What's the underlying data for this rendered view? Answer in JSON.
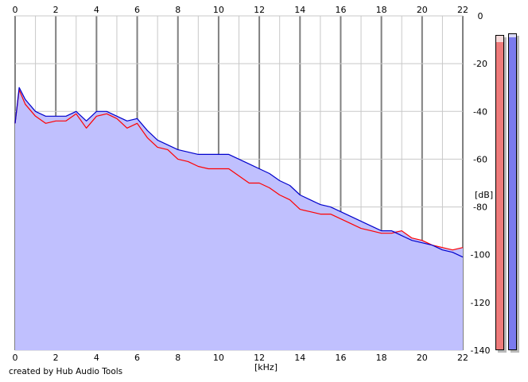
{
  "colors": {
    "background": "#ffffff",
    "area_fill": "#c0c0fe",
    "left_channel": "#ff0000",
    "right_channel": "#0000cc",
    "grid_minor": "#c8c8c8",
    "grid_major": "#808080",
    "meter_left": "#ee7b7b",
    "meter_right": "#7b7bee"
  },
  "credit": "created by Hub Audio Tools",
  "meters": {
    "left_level_fraction": 0.98,
    "right_level_fraction": 0.99
  },
  "chart_data": {
    "type": "area",
    "xlabel": "[kHz]",
    "ylabel": "[dB]",
    "xlim": [
      0,
      22
    ],
    "ylim": [
      -140,
      0
    ],
    "xticks": [
      0,
      2,
      4,
      6,
      8,
      10,
      12,
      14,
      16,
      18,
      20,
      22
    ],
    "xtick_labels": [
      "0",
      "2",
      "4",
      "6",
      "8",
      "10",
      "12",
      "14",
      "16",
      "18",
      "20",
      "22"
    ],
    "yticks": [
      0,
      -20,
      -40,
      -60,
      -80,
      -100,
      -120,
      -140
    ],
    "ytick_labels": [
      "0",
      "-20",
      "-40",
      "-60",
      "-80",
      "-100",
      "-120",
      "-140"
    ],
    "x_axis_position": "top and bottom",
    "y_axis_position": "right",
    "grid": true,
    "series": [
      {
        "channel": "left",
        "color": "#ff0000",
        "x": [
          0,
          0.2,
          0.5,
          1,
          1.5,
          2,
          2.5,
          3,
          3.5,
          4,
          4.5,
          5,
          5.5,
          6,
          6.5,
          7,
          7.5,
          8,
          8.5,
          9,
          9.5,
          10,
          10.5,
          11,
          11.5,
          12,
          12.5,
          13,
          13.5,
          14,
          14.5,
          15,
          15.5,
          16,
          16.5,
          17,
          17.5,
          18,
          18.5,
          19,
          19.5,
          20,
          20.5,
          21,
          21.5,
          22
        ],
        "y": [
          -45,
          -31,
          -37,
          -42,
          -45,
          -44,
          -44,
          -41,
          -47,
          -42,
          -41,
          -43,
          -47,
          -45,
          -51,
          -55,
          -56,
          -60,
          -61,
          -63,
          -64,
          -64,
          -64,
          -67,
          -70,
          -70,
          -72,
          -75,
          -77,
          -81,
          -82,
          -83,
          -83,
          -85,
          -87,
          -89,
          -90,
          -91,
          -91,
          -90,
          -93,
          -94,
          -96,
          -97,
          -98,
          -97
        ]
      },
      {
        "channel": "right",
        "color": "#0000cc",
        "x": [
          0,
          0.2,
          0.5,
          1,
          1.5,
          2,
          2.5,
          3,
          3.5,
          4,
          4.5,
          5,
          5.5,
          6,
          6.5,
          7,
          7.5,
          8,
          8.5,
          9,
          9.5,
          10,
          10.5,
          11,
          11.5,
          12,
          12.5,
          13,
          13.5,
          14,
          14.5,
          15,
          15.5,
          16,
          16.5,
          17,
          17.5,
          18,
          18.5,
          19,
          19.5,
          20,
          20.5,
          21,
          21.5,
          22
        ],
        "y": [
          -45,
          -30,
          -35,
          -40,
          -42,
          -42,
          -42,
          -40,
          -44,
          -40,
          -40,
          -42,
          -44,
          -43,
          -48,
          -52,
          -54,
          -56,
          -57,
          -58,
          -58,
          -58,
          -58,
          -60,
          -62,
          -64,
          -66,
          -69,
          -71,
          -75,
          -77,
          -79,
          -80,
          -82,
          -84,
          -86,
          -88,
          -90,
          -90,
          -92,
          -94,
          -95,
          -96,
          -98,
          -99,
          -101
        ]
      }
    ]
  }
}
